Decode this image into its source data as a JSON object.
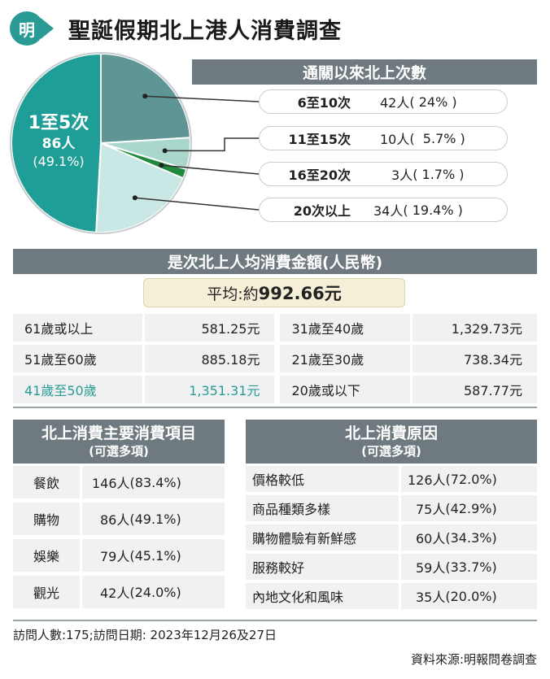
{
  "header": {
    "logo_text": "明",
    "title": "聖誕假期北上港人消費調查"
  },
  "colors": {
    "accent": "#2a9a94",
    "bar_gray": "#6e7a7f",
    "cell_bg": "#eff1f2",
    "avg_bg": "#f6efd8"
  },
  "chart_data": [
    {
      "type": "pie",
      "title": "通關以來北上次數",
      "slices": [
        {
          "label": "1至5次",
          "count": "86人",
          "percent_text": "(49.1%)",
          "value": 49.1,
          "color": "#1f9d97"
        },
        {
          "label": "6至10次",
          "count": "42人",
          "percent_text": "24%",
          "value": 24.0,
          "color": "#5f9595"
        },
        {
          "label": "11至15次",
          "count": "10人",
          "percent_text": "5.7%",
          "value": 5.7,
          "color": "#a9d7cc"
        },
        {
          "label": "16至20次",
          "count": "3人",
          "percent_text": "1.7%",
          "value": 1.7,
          "color": "#1f8a3c"
        },
        {
          "label": "20次以上",
          "count": "34人",
          "percent_text": "19.4%",
          "value": 19.4,
          "color": "#c9e7e4"
        }
      ]
    },
    {
      "type": "table",
      "title": "是次北上人均消費金額(人民幣)",
      "average_label": "平均:約",
      "average_value": "992.66元",
      "rows": [
        {
          "left_label": "61歲或以上",
          "left_value": "581.25元",
          "right_label": "31歲至40歲",
          "right_value": "1,329.73元"
        },
        {
          "left_label": "51歲至60歲",
          "left_value": "885.18元",
          "right_label": "21歲至30歲",
          "right_value": "738.34元"
        },
        {
          "left_label": "41歲至50歲",
          "left_value": "1,351.31元",
          "right_label": "20歲或以下",
          "right_value": "587.77元"
        }
      ]
    },
    {
      "type": "table",
      "title": "北上消費主要消費項目",
      "subtitle": "(可選多項)",
      "rows": [
        {
          "label": "餐飲",
          "count": "146人",
          "percent": "83.4%"
        },
        {
          "label": "購物",
          "count": "86人",
          "percent": "49.1%"
        },
        {
          "label": "娛樂",
          "count": "79人",
          "percent": "45.1%"
        },
        {
          "label": "觀光",
          "count": "42人",
          "percent": "24.0%"
        }
      ]
    },
    {
      "type": "table",
      "title": "北上消費原因",
      "subtitle": "(可選多項)",
      "rows": [
        {
          "label": "價格較低",
          "count": "126人",
          "percent": "72.0%"
        },
        {
          "label": "商品種類多樣",
          "count": "75人",
          "percent": "42.9%"
        },
        {
          "label": "購物體驗有新鮮感",
          "count": "60人",
          "percent": "34.3%"
        },
        {
          "label": "服務較好",
          "count": "59人",
          "percent": "33.7%"
        },
        {
          "label": "內地文化和風味",
          "count": "35人",
          "percent": "20.0%"
        }
      ]
    }
  ],
  "footer": {
    "survey_info": "訪問人數:175;訪問日期: 2023年12月26及27日",
    "source": "資料來源:明報問卷調查"
  }
}
